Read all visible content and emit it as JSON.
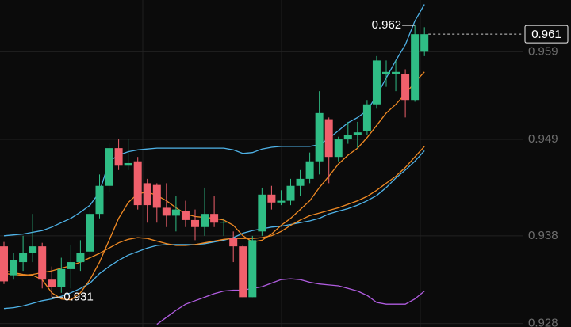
{
  "chart_data": {
    "type": "candlestick",
    "ylim": [
      0.9276,
      0.9649
    ],
    "yticks": [
      0.928,
      0.938,
      0.949,
      0.959
    ],
    "grid": true,
    "up_color": "#2fbd85",
    "down_color": "#f0606c",
    "open": [
      0.9368,
      0.9335,
      0.935,
      0.936,
      0.9368,
      0.933,
      0.9322,
      0.9342,
      0.935,
      0.9362,
      0.9405,
      0.9437,
      0.948,
      0.946,
      0.9465,
      0.944,
      0.9438,
      0.9412,
      0.9403,
      0.9408,
      0.9398,
      0.939,
      0.9405,
      0.9395,
      0.9378,
      0.9368,
      0.931,
      0.9385,
      0.9427,
      0.9418,
      0.942,
      0.9437,
      0.9445,
      0.9465,
      0.9513,
      0.947,
      0.949,
      0.9495,
      0.95,
      0.953,
      0.9565,
      0.9565,
      0.9565,
      0.9535,
      0.959
    ],
    "high": [
      0.9373,
      0.936,
      0.938,
      0.9405,
      0.9372,
      0.9345,
      0.9355,
      0.937,
      0.9375,
      0.941,
      0.945,
      0.9485,
      0.949,
      0.949,
      0.947,
      0.9445,
      0.944,
      0.944,
      0.9425,
      0.942,
      0.941,
      0.9435,
      0.9425,
      0.94,
      0.9385,
      0.937,
      0.938,
      0.9435,
      0.9437,
      0.9432,
      0.9445,
      0.9455,
      0.9475,
      0.9545,
      0.9515,
      0.9493,
      0.951,
      0.951,
      0.9535,
      0.9585,
      0.958,
      0.958,
      0.957,
      0.962,
      0.9618
    ],
    "low": [
      0.9325,
      0.933,
      0.934,
      0.935,
      0.932,
      0.931,
      0.9315,
      0.932,
      0.934,
      0.9355,
      0.94,
      0.943,
      0.9455,
      0.9455,
      0.941,
      0.9395,
      0.9395,
      0.939,
      0.9385,
      0.939,
      0.9375,
      0.938,
      0.939,
      0.938,
      0.935,
      0.931,
      0.931,
      0.938,
      0.941,
      0.9415,
      0.9415,
      0.9425,
      0.944,
      0.945,
      0.944,
      0.9465,
      0.9485,
      0.948,
      0.9495,
      0.9525,
      0.955,
      0.9545,
      0.9515,
      0.9533,
      0.9585
    ],
    "close": [
      0.9328,
      0.9352,
      0.936,
      0.9368,
      0.933,
      0.9322,
      0.9342,
      0.935,
      0.936,
      0.9405,
      0.9437,
      0.948,
      0.946,
      0.9463,
      0.9415,
      0.9415,
      0.9412,
      0.9403,
      0.941,
      0.9398,
      0.939,
      0.9405,
      0.9395,
      0.9396,
      0.9368,
      0.931,
      0.9375,
      0.9427,
      0.9418,
      0.942,
      0.9437,
      0.9445,
      0.9465,
      0.952,
      0.947,
      0.949,
      0.9495,
      0.9498,
      0.953,
      0.958,
      0.9567,
      0.9567,
      0.9535,
      0.961,
      0.961
    ],
    "series": [
      {
        "color": "#4fb3e8",
        "values": [
          0.938,
          0.9381,
          0.9382,
          0.9384,
          0.9386,
          0.939,
          0.9395,
          0.94,
          0.9407,
          0.9415,
          0.943,
          0.9465,
          0.9472,
          0.9476,
          0.9478,
          0.9479,
          0.948,
          0.948,
          0.948,
          0.948,
          0.948,
          0.948,
          0.948,
          0.948,
          0.9478,
          0.9474,
          0.9475,
          0.9479,
          0.9481,
          0.9482,
          0.9482,
          0.9482,
          0.9482,
          0.9484,
          0.9491,
          0.95,
          0.9509,
          0.9515,
          0.9523,
          0.954,
          0.956,
          0.958,
          0.9598,
          0.9625,
          0.9644
        ]
      },
      {
        "color": "#4fb3e8",
        "values": [
          0.9297,
          0.9298,
          0.93,
          0.9303,
          0.9306,
          0.9308,
          0.9311,
          0.9315,
          0.932,
          0.9326,
          0.9337,
          0.9345,
          0.9352,
          0.9358,
          0.9362,
          0.9366,
          0.9369,
          0.937,
          0.937,
          0.937,
          0.937,
          0.9371,
          0.9373,
          0.9375,
          0.9378,
          0.9383,
          0.9386,
          0.9388,
          0.939,
          0.9391,
          0.9393,
          0.9395,
          0.9397,
          0.94,
          0.9405,
          0.9408,
          0.9411,
          0.9415,
          0.942,
          0.9426,
          0.9435,
          0.9446,
          0.9455,
          0.9465,
          0.9477
        ]
      },
      {
        "color": "#f08a24",
        "values": [
          0.9337,
          0.9336,
          0.9335,
          0.9336,
          0.9338,
          0.934,
          0.9343,
          0.9346,
          0.935,
          0.9355,
          0.936,
          0.9366,
          0.9372,
          0.9376,
          0.9378,
          0.9377,
          0.9374,
          0.9371,
          0.9369,
          0.9369,
          0.937,
          0.9372,
          0.9374,
          0.9376,
          0.9377,
          0.9377,
          0.9377,
          0.9378,
          0.938,
          0.9385,
          0.9392,
          0.9398,
          0.9403,
          0.9406,
          0.9409,
          0.9412,
          0.9416,
          0.942,
          0.9425,
          0.9432,
          0.944,
          0.9448,
          0.9458,
          0.947,
          0.9482
        ]
      },
      {
        "color": "#f08a24",
        "values": [
          0.934,
          0.9338,
          0.9336,
          0.9335,
          0.933,
          0.9315,
          0.9308,
          0.9307,
          0.9315,
          0.933,
          0.935,
          0.9375,
          0.94,
          0.9418,
          0.9428,
          0.943,
          0.9426,
          0.942,
          0.9412,
          0.9405,
          0.9402,
          0.9401,
          0.94,
          0.9398,
          0.9392,
          0.938,
          0.9373,
          0.9375,
          0.9382,
          0.9392,
          0.94,
          0.941,
          0.942,
          0.9435,
          0.9448,
          0.9462,
          0.9472,
          0.948,
          0.9492,
          0.9506,
          0.952,
          0.953,
          0.9542,
          0.9555,
          0.9567
        ]
      },
      {
        "color": "#b05ce0",
        "values": [
          null,
          null,
          null,
          null,
          null,
          null,
          null,
          null,
          null,
          null,
          null,
          null,
          null,
          null,
          null,
          null,
          0.9279,
          0.9287,
          0.9295,
          0.9302,
          0.9306,
          0.931,
          0.9314,
          0.9317,
          0.9318,
          0.9318,
          0.932,
          0.9322,
          0.9326,
          0.933,
          0.9331,
          0.933,
          0.9327,
          0.9325,
          0.9324,
          0.9323,
          0.932,
          0.9317,
          0.9312,
          0.9304,
          0.9302,
          0.9302,
          0.9302,
          0.9308,
          0.9317
        ]
      }
    ],
    "max_label": 0.962,
    "min_label": 0.931,
    "last_price": 0.961
  }
}
